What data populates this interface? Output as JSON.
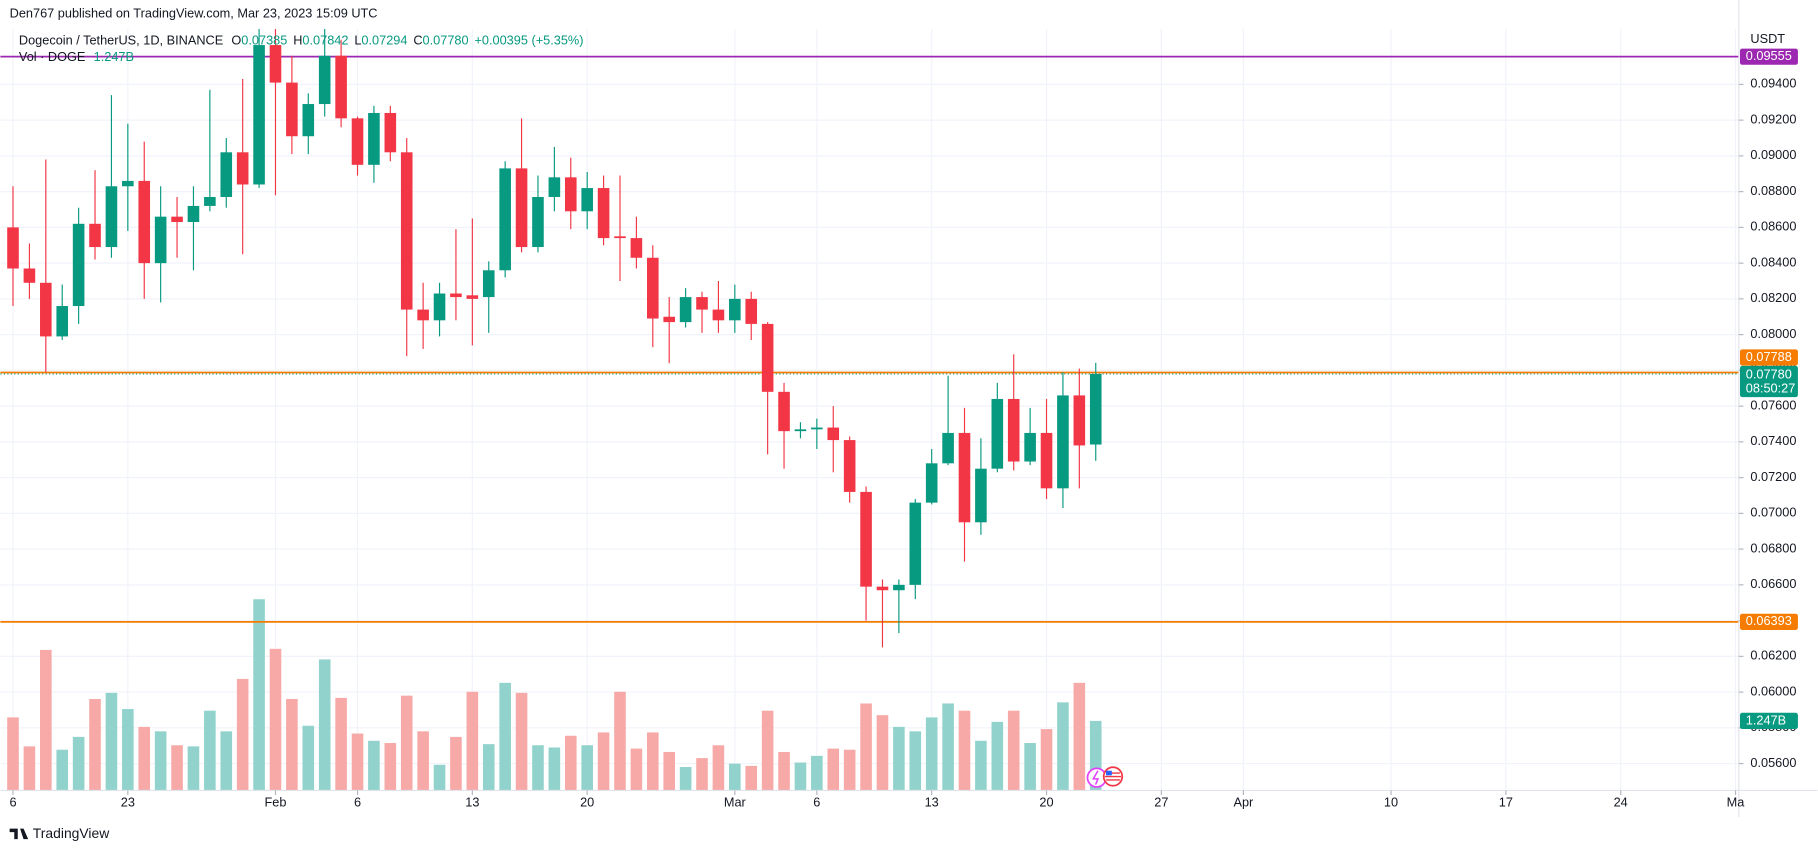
{
  "chart_data": {
    "type": "candlestick",
    "publisher": "Den767 published on TradingView.com, Mar 23, 2023 15:09 UTC",
    "title": "Dogecoin / TetherUS, 1D, BINANCE",
    "ohlc_prefixes": [
      "O",
      "H",
      "L",
      "C"
    ],
    "ohlc_labels": [
      "0.07385",
      "0.07842",
      "0.07294",
      "0.07780"
    ],
    "change_label": "+0.00395 (+5.35%)",
    "currency": "USDT",
    "brand": "TradingView",
    "up_color": "#089981",
    "down_color": "#f23645",
    "up_volume_color": "#92d2cc",
    "down_volume_color": "#f7a9a7",
    "grid": true,
    "x": [
      16,
      17,
      18,
      19,
      20,
      21,
      22,
      23,
      24,
      25,
      26,
      27,
      28,
      29,
      30,
      31,
      32,
      33,
      34,
      35,
      36,
      37,
      38,
      39,
      40,
      41,
      42,
      43,
      44,
      45,
      46,
      47,
      48,
      49,
      50,
      51,
      52,
      53,
      54,
      55,
      56,
      57,
      58,
      59,
      60,
      61,
      62,
      63,
      64,
      65,
      66,
      67,
      68,
      69,
      70,
      71,
      72,
      73,
      74,
      75,
      76,
      77,
      78,
      79,
      80,
      81,
      82
    ],
    "open": [
      0.086,
      0.0837,
      0.0829,
      0.0799,
      0.0816,
      0.0862,
      0.0849,
      0.0883,
      0.0886,
      0.084,
      0.0866,
      0.0863,
      0.0872,
      0.0877,
      0.0902,
      0.0884,
      0.0962,
      0.0941,
      0.0911,
      0.0929,
      0.0956,
      0.0921,
      0.0895,
      0.0924,
      0.0902,
      0.0814,
      0.0808,
      0.0823,
      0.0822,
      0.0821,
      0.0836,
      0.0893,
      0.0849,
      0.0877,
      0.0888,
      0.0869,
      0.0882,
      0.0855,
      0.0854,
      0.0843,
      0.081,
      0.0807,
      0.0821,
      0.0814,
      0.0808,
      0.082,
      0.0806,
      0.0768,
      0.0746,
      0.0747,
      0.0748,
      0.0741,
      0.0712,
      0.0659,
      0.0657,
      0.066,
      0.0706,
      0.0728,
      0.0745,
      0.0695,
      0.0725,
      0.0764,
      0.0729,
      0.0745,
      0.0714,
      0.0766,
      0.07385
    ],
    "high": [
      0.0883,
      0.0851,
      0.0898,
      0.0828,
      0.0871,
      0.0892,
      0.0934,
      0.0918,
      0.0908,
      0.0883,
      0.0877,
      0.0883,
      0.0937,
      0.091,
      0.0943,
      0.0971,
      0.0971,
      0.0956,
      0.0935,
      0.0971,
      0.0965,
      0.0922,
      0.0928,
      0.0928,
      0.091,
      0.0829,
      0.0829,
      0.0859,
      0.0865,
      0.0841,
      0.0897,
      0.0921,
      0.0889,
      0.0905,
      0.0899,
      0.0891,
      0.0889,
      0.0889,
      0.0866,
      0.085,
      0.0821,
      0.0826,
      0.0824,
      0.083,
      0.0828,
      0.0824,
      0.0807,
      0.0773,
      0.0751,
      0.0753,
      0.076,
      0.0743,
      0.0715,
      0.0663,
      0.0663,
      0.0708,
      0.0736,
      0.0777,
      0.0759,
      0.0742,
      0.0773,
      0.0789,
      0.0759,
      0.0764,
      0.0779,
      0.0781,
      0.07842
    ],
    "low": [
      0.0816,
      0.082,
      0.0779,
      0.0797,
      0.0806,
      0.0842,
      0.0843,
      0.0858,
      0.082,
      0.0818,
      0.0843,
      0.0836,
      0.0869,
      0.0871,
      0.0845,
      0.0882,
      0.0878,
      0.0901,
      0.0901,
      0.0922,
      0.0916,
      0.0889,
      0.0885,
      0.0897,
      0.0788,
      0.0792,
      0.0799,
      0.0808,
      0.0794,
      0.0801,
      0.0832,
      0.0846,
      0.0846,
      0.0869,
      0.0859,
      0.0859,
      0.085,
      0.083,
      0.0837,
      0.0793,
      0.0784,
      0.0804,
      0.0801,
      0.0801,
      0.0801,
      0.0797,
      0.0733,
      0.0725,
      0.0742,
      0.0736,
      0.0723,
      0.0706,
      0.064,
      0.0625,
      0.0633,
      0.0652,
      0.0705,
      0.0727,
      0.0673,
      0.0688,
      0.0723,
      0.0724,
      0.0727,
      0.0708,
      0.0703,
      0.0714,
      0.07294
    ],
    "close": [
      0.0837,
      0.0829,
      0.0799,
      0.0816,
      0.0862,
      0.0849,
      0.0883,
      0.0886,
      0.084,
      0.0866,
      0.0863,
      0.0872,
      0.0877,
      0.0902,
      0.0884,
      0.0962,
      0.0941,
      0.0911,
      0.0929,
      0.0956,
      0.0921,
      0.0895,
      0.0924,
      0.0902,
      0.0814,
      0.0808,
      0.0823,
      0.0821,
      0.082,
      0.0836,
      0.0893,
      0.0849,
      0.0877,
      0.0888,
      0.0869,
      0.0882,
      0.0854,
      0.0854,
      0.0843,
      0.0809,
      0.0807,
      0.0821,
      0.0814,
      0.0808,
      0.082,
      0.0806,
      0.0768,
      0.0746,
      0.0747,
      0.0748,
      0.0741,
      0.0712,
      0.0659,
      0.0657,
      0.066,
      0.0706,
      0.0728,
      0.0745,
      0.0695,
      0.0725,
      0.0764,
      0.0729,
      0.0745,
      0.0714,
      0.0766,
      0.0738,
      0.0778
    ],
    "volume": {
      "name": "Vol · DOGE",
      "last_label": "1.247B",
      "values": [
        1.31,
        0.79,
        2.52,
        0.73,
        0.96,
        1.64,
        1.75,
        1.46,
        1.14,
        1.06,
        0.81,
        0.79,
        1.43,
        1.06,
        2.0,
        3.43,
        2.54,
        1.64,
        1.16,
        2.35,
        1.66,
        1.02,
        0.89,
        0.85,
        1.7,
        1.06,
        0.46,
        0.96,
        1.77,
        0.83,
        1.93,
        1.75,
        0.81,
        0.77,
        0.98,
        0.81,
        1.04,
        1.77,
        0.75,
        1.04,
        0.69,
        0.42,
        0.58,
        0.81,
        0.48,
        0.44,
        1.43,
        0.69,
        0.5,
        0.62,
        0.75,
        0.73,
        1.56,
        1.35,
        1.14,
        1.06,
        1.31,
        1.56,
        1.43,
        0.89,
        1.23,
        1.43,
        0.85,
        1.1,
        1.58,
        1.93,
        1.247
      ],
      "ylim": [
        0,
        13.66
      ]
    },
    "xlim": [
      15.23,
      121.2
    ],
    "xticks": [
      {
        "value": 16,
        "label": "6"
      },
      {
        "value": 23,
        "label": "23"
      },
      {
        "value": 32,
        "label": "Feb"
      },
      {
        "value": 37,
        "label": "6"
      },
      {
        "value": 44,
        "label": "13"
      },
      {
        "value": 51,
        "label": "20"
      },
      {
        "value": 60,
        "label": "Mar"
      },
      {
        "value": 65,
        "label": "6"
      },
      {
        "value": 72,
        "label": "13"
      },
      {
        "value": 79,
        "label": "20"
      },
      {
        "value": 86,
        "label": "27"
      },
      {
        "value": 91,
        "label": "Apr"
      },
      {
        "value": 100,
        "label": "10"
      },
      {
        "value": 107,
        "label": "17"
      },
      {
        "value": 114,
        "label": "24"
      },
      {
        "value": 121,
        "label": "Ma"
      }
    ],
    "ylim": [
      0.0545,
      0.0971
    ],
    "yticks": [
      {
        "value": 0.056,
        "label": "0.05600"
      },
      {
        "value": 0.058,
        "label": "0.05800"
      },
      {
        "value": 0.06,
        "label": "0.06000"
      },
      {
        "value": 0.062,
        "label": "0.06200"
      },
      {
        "value": 0.064,
        "label": "0.06400"
      },
      {
        "value": 0.066,
        "label": "0.06600"
      },
      {
        "value": 0.068,
        "label": "0.06800"
      },
      {
        "value": 0.07,
        "label": "0.07000"
      },
      {
        "value": 0.072,
        "label": "0.07200"
      },
      {
        "value": 0.074,
        "label": "0.07400"
      },
      {
        "value": 0.076,
        "label": "0.07600"
      },
      {
        "value": 0.078,
        "label": "0.07800"
      },
      {
        "value": 0.08,
        "label": "0.08000"
      },
      {
        "value": 0.082,
        "label": "0.08200"
      },
      {
        "value": 0.084,
        "label": "0.08400"
      },
      {
        "value": 0.086,
        "label": "0.08600"
      },
      {
        "value": 0.088,
        "label": "0.08800"
      },
      {
        "value": 0.09,
        "label": "0.09000"
      },
      {
        "value": 0.092,
        "label": "0.09200"
      },
      {
        "value": 0.094,
        "label": "0.09400"
      }
    ],
    "price_lines": [
      {
        "value": 0.09555,
        "label": "0.09555",
        "color": "#9c27b0"
      },
      {
        "value": 0.07788,
        "label": "0.07788",
        "color": "#f57c00"
      },
      {
        "value": 0.06393,
        "label": "0.06393",
        "color": "#f57c00"
      }
    ],
    "last_price": {
      "label": "0.07780",
      "countdown": "08:50:27"
    }
  }
}
